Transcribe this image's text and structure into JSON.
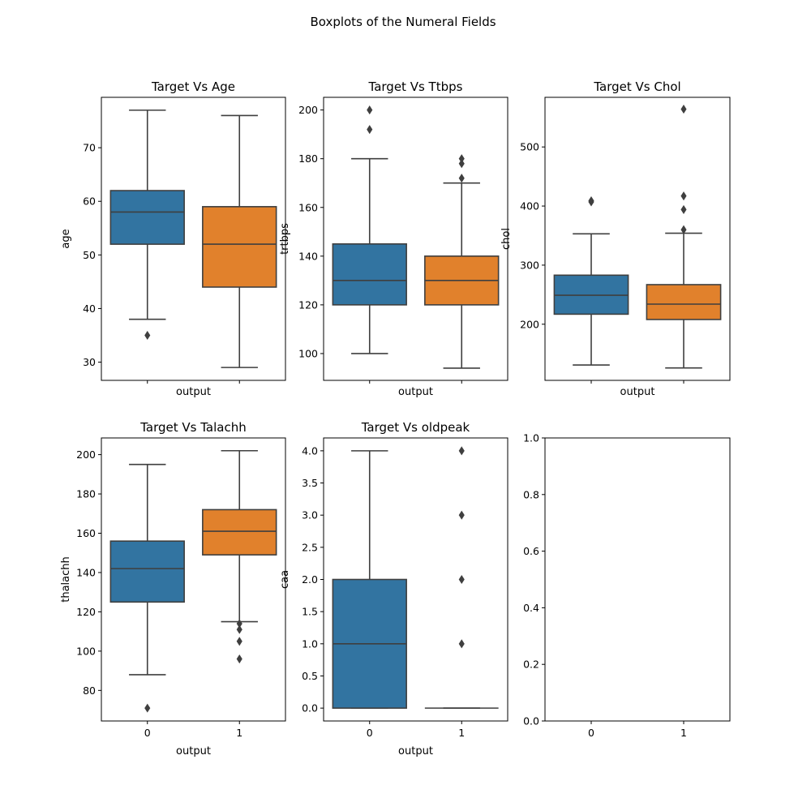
{
  "figure": {
    "suptitle": "Boxplots of the Numeral Fields"
  },
  "chart_data": [
    {
      "type": "box",
      "title": "Target Vs Age",
      "xlabel": "output",
      "ylabel": "age",
      "categories": [
        "0",
        "1"
      ],
      "show_xtick_labels": false,
      "ylim": [
        26.6,
        79.4
      ],
      "yticks": [
        30,
        40,
        50,
        60,
        70
      ],
      "ytick_labels": [
        "30",
        "40",
        "50",
        "60",
        "70"
      ],
      "grid": false,
      "boxes": [
        {
          "category": "0",
          "color": "#3274a1",
          "whislo": 38,
          "q1": 52,
          "med": 58,
          "q3": 62,
          "whishi": 77,
          "fliers": [
            35
          ]
        },
        {
          "category": "1",
          "color": "#e1812c",
          "whislo": 29,
          "q1": 44,
          "med": 52,
          "q3": 59,
          "whishi": 76,
          "fliers": []
        }
      ]
    },
    {
      "type": "box",
      "title": "Target Vs Ttbps",
      "xlabel": "output",
      "ylabel": "trtbps",
      "categories": [
        "0",
        "1"
      ],
      "show_xtick_labels": false,
      "ylim": [
        89,
        205.2
      ],
      "yticks": [
        100,
        120,
        140,
        160,
        180,
        200
      ],
      "ytick_labels": [
        "100",
        "120",
        "140",
        "160",
        "180",
        "200"
      ],
      "grid": false,
      "boxes": [
        {
          "category": "0",
          "color": "#3274a1",
          "whislo": 100,
          "q1": 120,
          "med": 130,
          "q3": 145,
          "whishi": 180,
          "fliers": [
            192,
            200
          ]
        },
        {
          "category": "1",
          "color": "#e1812c",
          "whislo": 94,
          "q1": 120,
          "med": 130,
          "q3": 140,
          "whishi": 170,
          "fliers": [
            172,
            178,
            180
          ]
        }
      ]
    },
    {
      "type": "box",
      "title": "Target Vs Chol",
      "xlabel": "output",
      "ylabel": "chol",
      "categories": [
        "0",
        "1"
      ],
      "show_xtick_labels": false,
      "ylim": [
        105,
        584
      ],
      "yticks": [
        200,
        300,
        400,
        500
      ],
      "ytick_labels": [
        "200",
        "300",
        "400",
        "500"
      ],
      "grid": false,
      "boxes": [
        {
          "category": "0",
          "color": "#3274a1",
          "whislo": 131,
          "q1": 217,
          "med": 249,
          "q3": 283,
          "whishi": 353,
          "fliers": [
            407,
            409
          ]
        },
        {
          "category": "1",
          "color": "#e1812c",
          "whislo": 126,
          "q1": 208,
          "med": 234,
          "q3": 267,
          "whishi": 354,
          "fliers": [
            360,
            394,
            417,
            564
          ]
        }
      ]
    },
    {
      "type": "box",
      "title": "Target Vs Talachh",
      "xlabel": "output",
      "ylabel": "thalachh",
      "categories": [
        "0",
        "1"
      ],
      "show_xtick_labels": true,
      "ylim": [
        64.45,
        208.5
      ],
      "yticks": [
        80,
        100,
        120,
        140,
        160,
        180,
        200
      ],
      "ytick_labels": [
        "80",
        "100",
        "120",
        "140",
        "160",
        "180",
        "200"
      ],
      "grid": false,
      "boxes": [
        {
          "category": "0",
          "color": "#3274a1",
          "whislo": 88,
          "q1": 125,
          "med": 142,
          "q3": 156,
          "whishi": 195,
          "fliers": [
            71
          ]
        },
        {
          "category": "1",
          "color": "#e1812c",
          "whislo": 115,
          "q1": 149,
          "med": 161,
          "q3": 172,
          "whishi": 202,
          "fliers": [
            96,
            105,
            111,
            114
          ]
        }
      ]
    },
    {
      "type": "box",
      "title": "Target Vs oldpeak",
      "xlabel": "output",
      "ylabel": "caa",
      "categories": [
        "0",
        "1"
      ],
      "show_xtick_labels": true,
      "ylim": [
        -0.2,
        4.2
      ],
      "yticks": [
        0,
        0.5,
        1,
        1.5,
        2,
        2.5,
        3,
        3.5,
        4
      ],
      "ytick_labels": [
        "0.0",
        "0.5",
        "1.0",
        "1.5",
        "2.0",
        "2.5",
        "3.0",
        "3.5",
        "4.0"
      ],
      "grid": false,
      "boxes": [
        {
          "category": "0",
          "color": "#3274a1",
          "whislo": 0,
          "q1": 0,
          "med": 1,
          "q3": 2,
          "whishi": 4,
          "fliers": []
        },
        {
          "category": "1",
          "color": "#e1812c",
          "whislo": 0,
          "q1": 0,
          "med": 0,
          "q3": 0,
          "whishi": 0,
          "fliers": [
            1,
            2,
            3,
            4
          ]
        }
      ]
    },
    {
      "type": "empty",
      "title": "",
      "xlabel": "",
      "ylabel": "",
      "categories": [
        "0",
        "1"
      ],
      "show_xtick_labels": true,
      "ylim": [
        0,
        1
      ],
      "yticks": [
        0,
        0.2,
        0.4,
        0.6,
        0.8,
        1.0
      ],
      "ytick_labels": [
        "0.0",
        "0.2",
        "0.4",
        "0.6",
        "0.8",
        "1.0"
      ],
      "grid": false,
      "boxes": []
    }
  ]
}
